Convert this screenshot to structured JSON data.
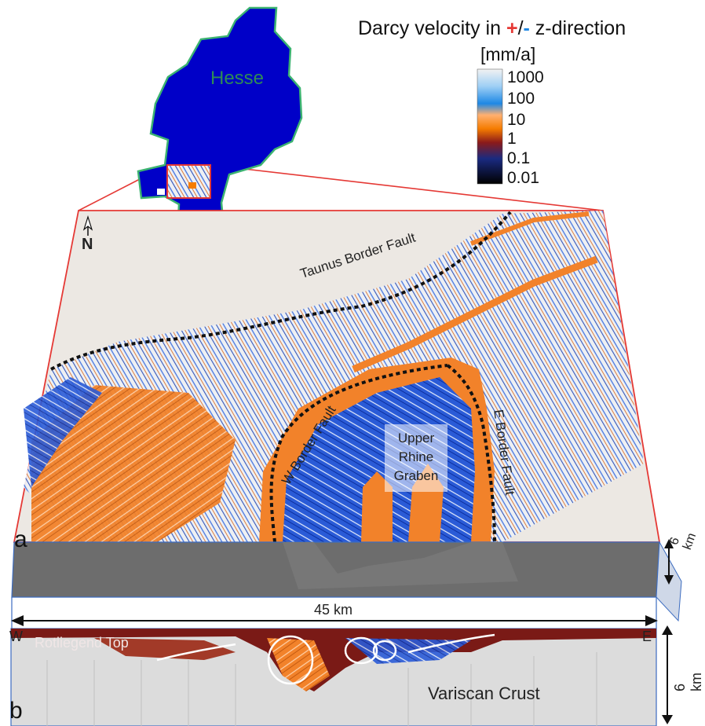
{
  "colorbar": {
    "title_prefix": "Darcy velocity in ",
    "plus": "+",
    "slash": "/",
    "minus": "-",
    "title_suffix": " z-direction",
    "unit": "[mm/a]",
    "ticks": [
      "1000",
      "100",
      "10",
      "1",
      "0.1",
      "0.01"
    ],
    "colors": [
      "#ffffff",
      "#1e88e5",
      "#f57c00",
      "#8b1a1a",
      "#0d1b4d",
      "#000000"
    ]
  },
  "map": {
    "region_label": "Hesse",
    "region_color": "#0000c8",
    "border_color": "#3cb371"
  },
  "panel_a": {
    "letter": "a",
    "north_label": "N",
    "faults": {
      "taunus": "Taunus Border Fault",
      "west": "W Border Fault",
      "east": "E Border Fault"
    },
    "graben": [
      "Upper",
      "Rhine",
      "Graben"
    ],
    "depth_label": "6 km"
  },
  "scale": {
    "west": "W",
    "east": "E",
    "distance": "45 km"
  },
  "panel_b": {
    "letter": "b",
    "top_label": "Rotliegend Top",
    "crust_label": "Variscan Crust",
    "depth_label": "6 km"
  }
}
